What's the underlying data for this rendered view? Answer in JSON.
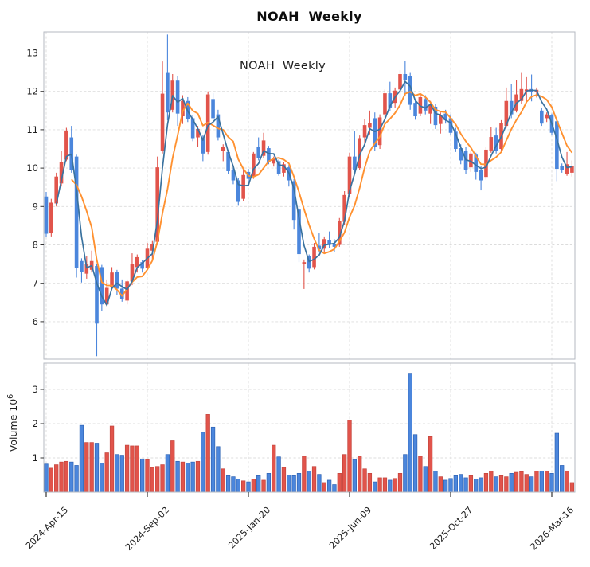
{
  "title": "NOAH  Weekly",
  "watermark": "NOAH  Weekly",
  "colors": {
    "up": "#e1544b",
    "up_edge": "#c4443c",
    "down": "#4b86dc",
    "down_edge": "#2f63b4",
    "ma_fast": "#3a729f",
    "ma_slow": "#ff9130",
    "grid": "#dcdcdc",
    "spine": "#b4b9c2",
    "tick_text": "#1f1f1f",
    "background": "#ffffff"
  },
  "price_axis": {
    "ticks": [
      6,
      7,
      8,
      9,
      10,
      11,
      12,
      13
    ]
  },
  "volume_axis": {
    "label_word": "Volume",
    "label_base": "10",
    "label_exponent": "6",
    "ticks": [
      1,
      2,
      3
    ]
  },
  "x_axis": {
    "tick_weeks": [
      0,
      20,
      40,
      60,
      80,
      100
    ],
    "labels": [
      "2024-Apr-15",
      "2024-Sep-02",
      "2025-Jan-20",
      "2025-Jun-09",
      "2025-Oct-27",
      "2026-Mar-16"
    ]
  },
  "chart_data": {
    "type": "candlestick",
    "title": "NOAH  Weekly",
    "frequency": "weekly",
    "legend_position": "none",
    "grid": true,
    "price_ylim": [
      4.95,
      13.55
    ],
    "volume_ylim_millions": [
      0,
      3.76
    ],
    "volume_unit": "10^6",
    "moving_averages": [
      {
        "name": "ma-fast",
        "period": 3
      },
      {
        "name": "ma-slow",
        "period": 6
      }
    ],
    "ohlcv_note": "each row is [open, high, low, close, volume_millions]; up weeks render red, down weeks blue",
    "candles": [
      [
        9.26,
        9.38,
        8.2,
        8.29,
        0.82
      ],
      [
        8.3,
        9.2,
        8.22,
        9.1,
        0.7
      ],
      [
        9.08,
        9.88,
        9.0,
        9.78,
        0.8
      ],
      [
        9.6,
        10.45,
        9.52,
        10.15,
        0.88
      ],
      [
        10.22,
        11.05,
        10.18,
        10.98,
        0.9
      ],
      [
        10.8,
        11.1,
        9.88,
        9.95,
        0.88
      ],
      [
        10.3,
        10.35,
        7.15,
        7.4,
        0.78
      ],
      [
        7.58,
        7.65,
        7.02,
        7.3,
        1.95
      ],
      [
        7.25,
        7.72,
        7.12,
        7.5,
        1.45
      ],
      [
        7.35,
        7.85,
        7.28,
        7.58,
        1.45
      ],
      [
        7.45,
        7.5,
        5.1,
        5.95,
        1.43
      ],
      [
        7.42,
        7.48,
        6.28,
        6.45,
        0.85
      ],
      [
        6.45,
        7.1,
        6.4,
        6.88,
        1.15
      ],
      [
        6.9,
        7.42,
        6.85,
        7.28,
        1.93
      ],
      [
        7.3,
        7.35,
        6.7,
        6.86,
        1.1
      ],
      [
        6.86,
        7.1,
        6.52,
        6.6,
        1.08
      ],
      [
        6.55,
        7.1,
        6.45,
        7.05,
        1.37
      ],
      [
        7.05,
        7.78,
        6.95,
        7.5,
        1.35
      ],
      [
        7.42,
        7.75,
        7.28,
        7.68,
        1.35
      ],
      [
        7.55,
        7.6,
        7.28,
        7.38,
        0.97
      ],
      [
        7.4,
        8.05,
        7.35,
        7.9,
        0.95
      ],
      [
        7.85,
        8.1,
        7.6,
        8.02,
        0.72
      ],
      [
        8.08,
        10.3,
        8.0,
        10.02,
        0.75
      ],
      [
        10.45,
        12.78,
        10.38,
        11.94,
        0.8
      ],
      [
        12.48,
        13.48,
        11.25,
        11.45,
        1.1
      ],
      [
        11.52,
        12.45,
        11.45,
        12.28,
        1.5
      ],
      [
        12.28,
        12.4,
        11.1,
        11.42,
        0.9
      ],
      [
        11.35,
        11.9,
        11.15,
        11.75,
        0.88
      ],
      [
        11.75,
        11.85,
        11.2,
        11.28,
        0.85
      ],
      [
        11.3,
        11.38,
        10.7,
        10.78,
        0.88
      ],
      [
        10.8,
        11.1,
        10.55,
        11.02,
        0.9
      ],
      [
        10.78,
        10.85,
        10.18,
        10.38,
        1.75
      ],
      [
        10.42,
        12.0,
        10.35,
        11.92,
        2.27
      ],
      [
        11.8,
        11.95,
        11.22,
        11.3,
        1.9
      ],
      [
        11.4,
        11.52,
        10.72,
        10.8,
        1.33
      ],
      [
        10.45,
        10.62,
        10.18,
        10.55,
        0.68
      ],
      [
        10.42,
        10.48,
        9.85,
        9.92,
        0.48
      ],
      [
        9.95,
        10.02,
        9.58,
        9.68,
        0.45
      ],
      [
        9.68,
        9.75,
        9.02,
        9.12,
        0.38
      ],
      [
        9.2,
        9.95,
        9.15,
        9.82,
        0.33
      ],
      [
        9.9,
        9.98,
        9.65,
        9.72,
        0.3
      ],
      [
        9.78,
        10.42,
        9.72,
        10.38,
        0.38
      ],
      [
        10.55,
        10.8,
        10.2,
        10.26,
        0.48
      ],
      [
        10.32,
        10.92,
        10.26,
        10.72,
        0.35
      ],
      [
        10.52,
        10.58,
        10.1,
        10.16,
        0.55
      ],
      [
        10.12,
        10.3,
        10.04,
        10.24,
        1.37
      ],
      [
        10.18,
        10.22,
        9.8,
        9.85,
        1.03
      ],
      [
        9.88,
        10.15,
        9.78,
        10.1,
        0.72
      ],
      [
        10.02,
        10.08,
        9.52,
        9.68,
        0.5
      ],
      [
        9.66,
        9.72,
        8.4,
        8.65,
        0.48
      ],
      [
        8.92,
        8.98,
        7.55,
        7.76,
        0.55
      ],
      [
        7.5,
        7.62,
        6.85,
        7.55,
        1.05
      ],
      [
        7.7,
        7.75,
        7.28,
        7.38,
        0.62
      ],
      [
        7.42,
        8.05,
        7.36,
        7.95,
        0.75
      ],
      [
        7.98,
        8.3,
        7.8,
        7.88,
        0.52
      ],
      [
        7.9,
        8.22,
        7.82,
        8.15,
        0.28
      ],
      [
        8.12,
        8.35,
        7.92,
        8.02,
        0.35
      ],
      [
        8.02,
        8.15,
        7.82,
        7.95,
        0.22
      ],
      [
        8.0,
        8.7,
        7.95,
        8.62,
        0.55
      ],
      [
        8.6,
        9.4,
        8.52,
        9.3,
        1.1
      ],
      [
        9.32,
        10.4,
        9.25,
        10.3,
        2.1
      ],
      [
        10.3,
        10.96,
        9.85,
        9.95,
        0.95
      ],
      [
        10.0,
        10.85,
        9.95,
        10.78,
        1.05
      ],
      [
        10.8,
        11.28,
        10.58,
        11.12,
        0.68
      ],
      [
        11.05,
        11.5,
        10.88,
        11.18,
        0.55
      ],
      [
        11.3,
        11.45,
        10.45,
        10.55,
        0.3
      ],
      [
        10.6,
        11.4,
        10.5,
        11.32,
        0.42
      ],
      [
        11.4,
        12.05,
        11.28,
        11.95,
        0.42
      ],
      [
        11.95,
        12.25,
        11.48,
        11.58,
        0.35
      ],
      [
        11.7,
        12.1,
        11.58,
        12.02,
        0.4
      ],
      [
        12.05,
        12.55,
        11.6,
        12.45,
        0.55
      ],
      [
        12.45,
        12.79,
        11.88,
        12.3,
        1.1
      ],
      [
        12.4,
        12.48,
        11.52,
        11.65,
        3.45
      ],
      [
        11.7,
        11.8,
        11.26,
        11.35,
        1.68
      ],
      [
        11.42,
        11.92,
        11.35,
        11.85,
        1.05
      ],
      [
        11.8,
        11.9,
        11.4,
        11.5,
        0.75
      ],
      [
        11.42,
        11.75,
        11.15,
        11.65,
        1.62
      ],
      [
        11.6,
        11.68,
        11.02,
        11.12,
        0.62
      ],
      [
        11.15,
        11.45,
        10.9,
        11.38,
        0.45
      ],
      [
        11.42,
        11.52,
        11.16,
        11.25,
        0.35
      ],
      [
        11.3,
        11.4,
        10.85,
        10.92,
        0.4
      ],
      [
        10.95,
        11.05,
        10.42,
        10.5,
        0.48
      ],
      [
        10.52,
        10.62,
        10.1,
        10.2,
        0.52
      ],
      [
        10.45,
        10.55,
        9.85,
        9.95,
        0.42
      ],
      [
        10.02,
        10.45,
        9.9,
        10.38,
        0.48
      ],
      [
        10.35,
        10.4,
        9.7,
        9.9,
        0.38
      ],
      [
        9.95,
        10.05,
        9.42,
        9.68,
        0.42
      ],
      [
        9.77,
        10.55,
        9.7,
        10.48,
        0.55
      ],
      [
        10.46,
        11.06,
        10.4,
        10.81,
        0.62
      ],
      [
        10.85,
        11.05,
        10.38,
        10.45,
        0.45
      ],
      [
        10.5,
        11.25,
        10.45,
        11.18,
        0.48
      ],
      [
        11.1,
        12.1,
        11.05,
        11.75,
        0.45
      ],
      [
        11.75,
        12.2,
        11.3,
        11.4,
        0.55
      ],
      [
        11.5,
        12.3,
        11.45,
        11.92,
        0.58
      ],
      [
        11.75,
        12.48,
        11.68,
        12.06,
        0.6
      ],
      [
        12.0,
        12.37,
        11.7,
        12.05,
        0.52
      ],
      [
        12.06,
        12.44,
        11.74,
        11.98,
        0.45
      ],
      [
        11.98,
        12.1,
        11.84,
        12.04,
        0.62
      ],
      [
        11.5,
        11.58,
        11.1,
        11.16,
        0.62
      ],
      [
        11.3,
        11.45,
        11.2,
        11.4,
        0.62
      ],
      [
        11.38,
        11.42,
        10.85,
        10.92,
        0.55
      ],
      [
        11.22,
        11.3,
        9.66,
        9.98,
        1.72
      ],
      [
        10.05,
        10.12,
        9.88,
        9.96,
        0.78
      ],
      [
        9.85,
        10.42,
        9.8,
        10.1,
        0.62
      ],
      [
        9.88,
        10.2,
        9.78,
        10.05,
        0.28
      ]
    ]
  }
}
